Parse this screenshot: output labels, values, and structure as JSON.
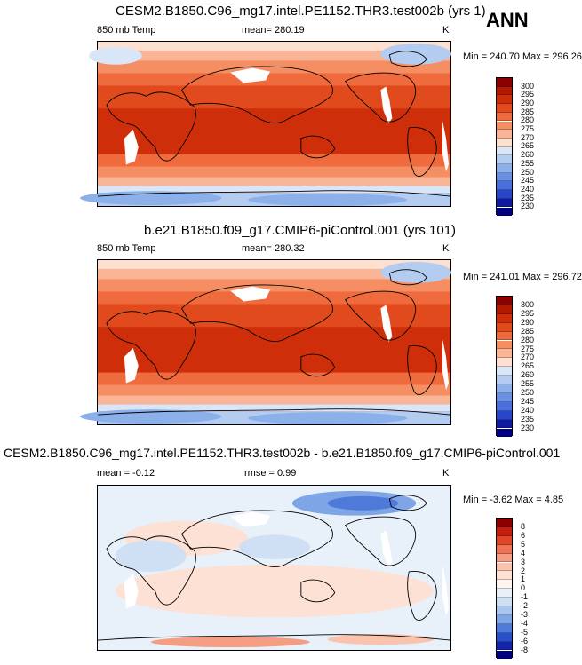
{
  "season": "ANN",
  "panels": [
    {
      "title": "CESM2.B1850.C96_mg17.intel.PE1152.THR3.test002b (yrs 1)",
      "left_label": "850 mb Temp",
      "center_label": "mean= 280.19",
      "right_label": "K",
      "stats": "Min = 240.70 Max = 296.26",
      "colorbar": {
        "levels": [
          "300",
          "295",
          "290",
          "285",
          "280",
          "275",
          "270",
          "265",
          "260",
          "255",
          "250",
          "245",
          "240",
          "235",
          "230"
        ],
        "colors": [
          "#8b0000",
          "#b21a00",
          "#cf2e0b",
          "#e04a1c",
          "#ef6a3c",
          "#f58e63",
          "#fab596",
          "#fde0cf",
          "#d9e6f7",
          "#b4ccf0",
          "#8cb0ea",
          "#6a90e3",
          "#4a6fdc",
          "#2945c8",
          "#101aa0",
          "#000080"
        ]
      },
      "map_fill": "#e9582b"
    },
    {
      "title": "b.e21.B1850.f09_g17.CMIP6-piControl.001 (yrs 101)",
      "left_label": "850 mb Temp",
      "center_label": "mean= 280.32",
      "right_label": "K",
      "stats": "Min = 241.01 Max = 296.72",
      "colorbar": {
        "levels": [
          "300",
          "295",
          "290",
          "285",
          "280",
          "275",
          "270",
          "265",
          "260",
          "255",
          "250",
          "245",
          "240",
          "235",
          "230"
        ],
        "colors": [
          "#8b0000",
          "#b21a00",
          "#cf2e0b",
          "#e04a1c",
          "#ef6a3c",
          "#f58e63",
          "#fab596",
          "#fde0cf",
          "#d9e6f7",
          "#b4ccf0",
          "#8cb0ea",
          "#6a90e3",
          "#4a6fdc",
          "#2945c8",
          "#101aa0",
          "#000080"
        ]
      },
      "map_fill": "#e9582b"
    },
    {
      "title": "CESM2.B1850.C96_mg17.intel.PE1152.THR3.test002b - b.e21.B1850.f09_g17.CMIP6-piControl.001",
      "left_label": "mean =  -0.12",
      "center_label": "rmse =  0.99",
      "right_label": "K",
      "stats": "Min = -3.62 Max =  4.85",
      "colorbar": {
        "levels": [
          "8",
          "6",
          "5",
          "4",
          "3",
          "2",
          "1",
          "0",
          "-1",
          "-2",
          "-3",
          "-4",
          "-5",
          "-6",
          "-8"
        ],
        "colors": [
          "#8b0000",
          "#c41e10",
          "#e0452a",
          "#ef7357",
          "#f59d83",
          "#fac3ae",
          "#fde1d5",
          "#fff4ee",
          "#e8f0fa",
          "#cfe0f5",
          "#a9c6ee",
          "#7ea5e6",
          "#4f7ad9",
          "#2b4fca",
          "#1424a8",
          "#000080"
        ]
      },
      "map_fill": "#eef2fb"
    }
  ]
}
